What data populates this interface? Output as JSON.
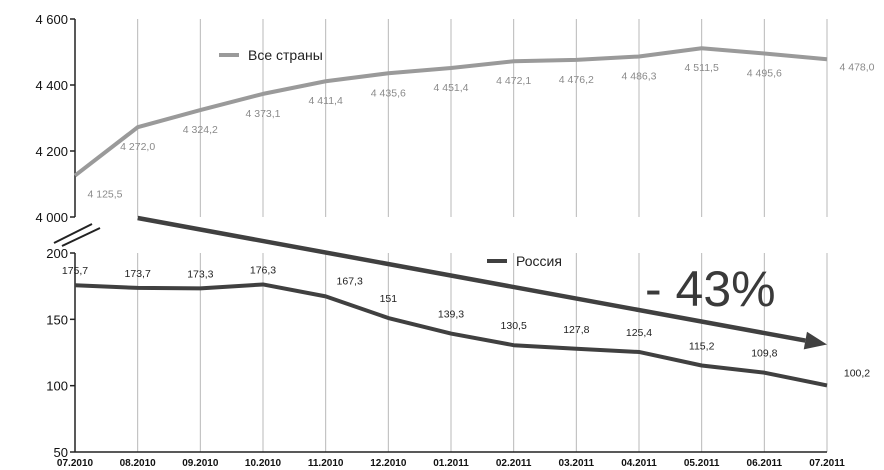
{
  "chart_data": {
    "type": "line",
    "x": [
      "07.2010",
      "08.2010",
      "09.2010",
      "10.2010",
      "11.2010",
      "12.2010",
      "01.2011",
      "02.2011",
      "03.2011",
      "04.2011",
      "05.2011",
      "06.2011",
      "07.2011"
    ],
    "series": [
      {
        "name": "Все страны",
        "color": "#9a9a9a",
        "values": [
          4125.5,
          4272.0,
          4324.2,
          4373.1,
          4411.4,
          4435.6,
          4451.4,
          4472.1,
          4476.2,
          4486.3,
          4511.5,
          4495.6,
          4478.0
        ],
        "labels": [
          "4 125,5",
          "4 272,0",
          "4 324,2",
          "4 373,1",
          "4 411,4",
          "4 435,6",
          "4 451,4",
          "4 472,1",
          "4 476,2",
          "4 486,3",
          "4 511,5",
          "4 495,6",
          "4 478,0"
        ],
        "yticks": [
          4000,
          4200,
          4400,
          4600
        ],
        "ytick_labels": [
          "4 000",
          "4 200",
          "4 400",
          "4 600"
        ],
        "ylim": [
          4000,
          4600
        ]
      },
      {
        "name": "Россия",
        "color": "#404040",
        "values": [
          175.7,
          173.7,
          173.3,
          176.3,
          167.3,
          151,
          139.3,
          130.5,
          127.8,
          125.4,
          115.2,
          109.8,
          100.2
        ],
        "labels": [
          "175,7",
          "173,7",
          "173,3",
          "176,3",
          "167,3",
          "151",
          "139,3",
          "130,5",
          "127,8",
          "125,4",
          "115,2",
          "109,8",
          "100,2"
        ],
        "yticks": [
          50,
          100,
          150,
          200
        ],
        "ytick_labels": [
          "50",
          "100",
          "150",
          "200"
        ],
        "ylim": [
          50,
          200
        ]
      }
    ],
    "annotation": "- 43%",
    "trend_arrow": {
      "from": [
        "08.2010",
        200
      ],
      "to": [
        "07.2011",
        131
      ]
    },
    "grid": "vertical",
    "legend": "inline"
  }
}
